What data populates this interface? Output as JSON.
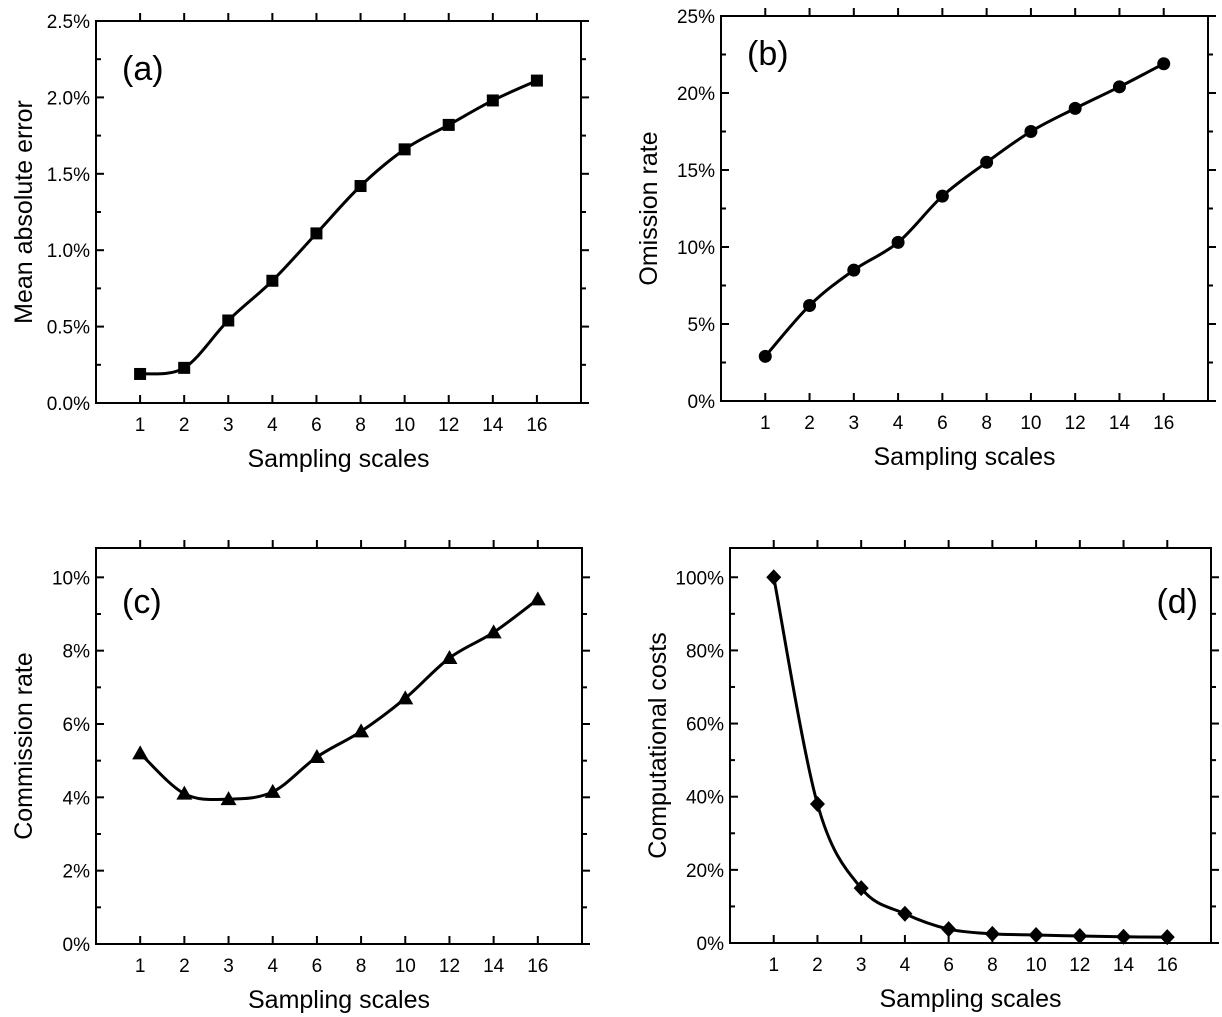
{
  "chart_data": [
    {
      "type": "line",
      "panel": "(a)",
      "categories": [
        "1",
        "2",
        "3",
        "4",
        "6",
        "8",
        "10",
        "12",
        "14",
        "16"
      ],
      "series": [
        {
          "values": [
            0.19,
            0.23,
            0.54,
            0.8,
            1.11,
            1.42,
            1.66,
            1.82,
            1.98,
            2.11
          ],
          "marker": "square"
        }
      ],
      "xlabel": "Sampling scales",
      "ylabel": "Mean absolute error",
      "ylim": [
        0,
        2.5
      ],
      "yticks": [
        0,
        0.5,
        1.0,
        1.5,
        2.0,
        2.5
      ],
      "ytick_labels": [
        "0.0%",
        "0.5%",
        "1.0%",
        "1.5%",
        "2.0%",
        "2.5%"
      ],
      "grid": false
    },
    {
      "type": "line",
      "panel": "(b)",
      "categories": [
        "1",
        "2",
        "3",
        "4",
        "6",
        "8",
        "10",
        "12",
        "14",
        "16"
      ],
      "series": [
        {
          "values": [
            2.9,
            6.2,
            8.5,
            10.3,
            13.3,
            15.5,
            17.5,
            19.0,
            20.4,
            21.9
          ],
          "marker": "circle"
        }
      ],
      "xlabel": "Sampling scales",
      "ylabel": "Omission rate",
      "ylim": [
        0,
        25
      ],
      "yticks": [
        0,
        5,
        10,
        15,
        20,
        25
      ],
      "ytick_labels": [
        "0%",
        "5%",
        "10%",
        "15%",
        "20%",
        "25%"
      ],
      "grid": false
    },
    {
      "type": "line",
      "panel": "(c)",
      "categories": [
        "1",
        "2",
        "3",
        "4",
        "6",
        "8",
        "10",
        "12",
        "14",
        "16"
      ],
      "series": [
        {
          "values": [
            5.2,
            4.1,
            3.95,
            4.15,
            5.1,
            5.8,
            6.7,
            7.8,
            8.5,
            9.4
          ],
          "marker": "triangle"
        }
      ],
      "xlabel": "Sampling scales",
      "ylabel": "Commission rate",
      "ylim": [
        0,
        10.8
      ],
      "yticks": [
        0,
        2,
        4,
        6,
        8,
        10
      ],
      "ytick_labels": [
        "0%",
        "2%",
        "4%",
        "6%",
        "8%",
        "10%"
      ],
      "grid": false
    },
    {
      "type": "line",
      "panel": "(d)",
      "categories": [
        "1",
        "2",
        "3",
        "4",
        "6",
        "8",
        "10",
        "12",
        "14",
        "16"
      ],
      "series": [
        {
          "values": [
            100,
            38,
            15,
            8,
            3.8,
            2.5,
            2.2,
            1.9,
            1.7,
            1.6
          ],
          "marker": "diamond"
        }
      ],
      "xlabel": "Sampling scales",
      "ylabel": "Computational costs",
      "ylim": [
        0,
        108
      ],
      "yticks": [
        0,
        20,
        40,
        60,
        80,
        100
      ],
      "ytick_labels": [
        "0%",
        "20%",
        "40%",
        "60%",
        "80%",
        "100%"
      ],
      "grid": false
    }
  ]
}
